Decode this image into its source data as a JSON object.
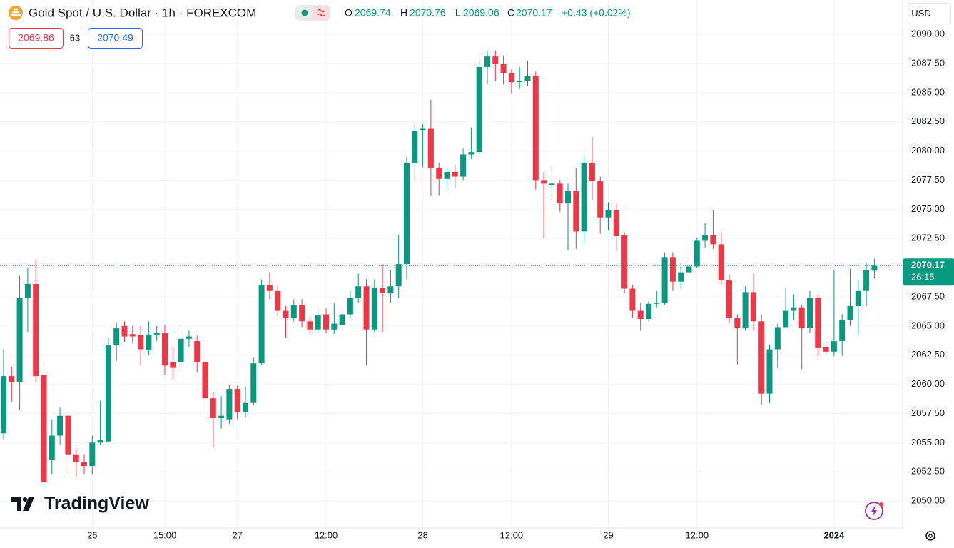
{
  "chart_data": {
    "type": "candlestick",
    "title": "Gold Spot / U.S. Dollar · 1h · FOREXCOM",
    "ohlc_letters": [
      "O",
      "H",
      "L",
      "C"
    ],
    "change": "+0.43 (+0.02%)",
    "bid": "2069.86",
    "spread": "63",
    "ask": "2070.49",
    "currency": "USD",
    "countdown": "26:15",
    "brand": "TradingView",
    "up_color": "#089981",
    "down_color": "#f23645",
    "grid": true,
    "open": [
      2055.8,
      2060.7,
      2060.2,
      2067.4,
      2068.6,
      2060.8,
      2053.5,
      2055.6,
      2057.3,
      2054.0,
      2053.3,
      2053.0,
      2055.0,
      2055.1,
      2063.4,
      2065.0,
      2064.3,
      2064.2,
      2062.9,
      2064.2,
      2064.4,
      2061.9,
      2061.9,
      2063.9,
      2063.7,
      2061.9,
      2058.8,
      2057.1,
      2057.0,
      2059.6,
      2057.6,
      2058.4,
      2061.8,
      2068.5,
      2068.0,
      2066.3,
      2065.7,
      2066.8,
      2065.4,
      2064.7,
      2066.0,
      2064.7,
      2065.1,
      2066.0,
      2067.4,
      2068.4,
      2064.7,
      2068.3,
      2067.8,
      2068.4,
      2070.3,
      2079.0,
      2081.8,
      2081.9,
      2078.5,
      2077.6,
      2078.2,
      2077.8,
      2079.7,
      2079.9,
      2087.2,
      2088.1,
      2087.5,
      2086.7,
      2085.9,
      2086.0,
      2086.4,
      2077.5,
      2077.1,
      2077.2,
      2075.5,
      2076.6,
      2073.1,
      2079.0,
      2077.4,
      2074.3,
      2074.9,
      2072.8,
      2068.2,
      2066.3,
      2065.6,
      2066.9,
      2067.0,
      2070.9,
      2068.8,
      2069.6,
      2070.1,
      2072.3,
      2072.8,
      2072.0,
      2068.9,
      2065.7,
      2064.8,
      2067.9,
      2065.4,
      2059.2,
      2063.0,
      2064.9,
      2066.3,
      2066.6,
      2064.8,
      2067.4,
      2063.2,
      2062.8,
      2063.7,
      2065.5,
      2066.7,
      2068.0,
      2069.74
    ],
    "high": [
      2063.0,
      2061.5,
      2069.3,
      2070.0,
      2070.7,
      2062.0,
      2057.0,
      2058.0,
      2057.5,
      2054.5,
      2054.0,
      2055.6,
      2058.6,
      2064.0,
      2065.3,
      2065.4,
      2065.0,
      2065.0,
      2065.4,
      2065.0,
      2065.1,
      2063.2,
      2064.6,
      2064.6,
      2064.2,
      2062.3,
      2059.3,
      2059.0,
      2059.9,
      2059.9,
      2059.8,
      2062.3,
      2069.0,
      2069.6,
      2068.5,
      2066.7,
      2067.3,
      2067.3,
      2065.8,
      2066.5,
      2066.5,
      2067.0,
      2066.5,
      2068.0,
      2069.5,
      2069.0,
      2069.0,
      2070.3,
      2069.8,
      2072.8,
      2079.5,
      2082.5,
      2082.3,
      2084.4,
      2079.0,
      2078.6,
      2078.8,
      2080.2,
      2082.0,
      2087.8,
      2088.6,
      2088.6,
      2088.2,
      2087.0,
      2087.2,
      2087.7,
      2086.8,
      2078.2,
      2078.7,
      2077.5,
      2077.2,
      2078.5,
      2079.5,
      2081.2,
      2077.8,
      2075.6,
      2075.5,
      2073.0,
      2068.5,
      2067.0,
      2067.1,
      2068.0,
      2071.3,
      2071.3,
      2070.4,
      2070.6,
      2072.6,
      2073.8,
      2074.9,
      2073.0,
      2069.4,
      2066.0,
      2068.4,
      2069.5,
      2066.0,
      2063.4,
      2065.2,
      2068.2,
      2067.7,
      2066.8,
      2068.0,
      2067.7,
      2063.5,
      2069.8,
      2066.0,
      2069.9,
      2068.9,
      2070.4,
      2070.76
    ],
    "low": [
      2055.3,
      2058.5,
      2057.8,
      2064.5,
      2060.2,
      2051.2,
      2052.3,
      2054.8,
      2052.2,
      2052.0,
      2052.3,
      2052.3,
      2054.8,
      2055.0,
      2062.0,
      2063.6,
      2063.5,
      2061.6,
      2062.5,
      2063.7,
      2060.8,
      2060.4,
      2061.5,
      2063.2,
      2061.0,
      2057.5,
      2054.6,
      2056.2,
      2056.6,
      2057.0,
      2057.2,
      2058.2,
      2061.6,
      2067.3,
      2065.8,
      2064.0,
      2065.4,
      2064.9,
      2064.3,
      2064.3,
      2064.4,
      2064.3,
      2064.6,
      2065.6,
      2067.0,
      2061.6,
      2064.5,
      2064.5,
      2067.0,
      2067.4,
      2069.0,
      2077.5,
      2078.6,
      2076.2,
      2076.2,
      2076.7,
      2076.8,
      2077.5,
      2079.3,
      2079.7,
      2085.7,
      2086.0,
      2085.7,
      2084.9,
      2085.3,
      2085.6,
      2076.7,
      2072.5,
      2075.9,
      2074.8,
      2071.5,
      2071.6,
      2072.0,
      2075.8,
      2072.9,
      2073.2,
      2071.4,
      2067.8,
      2065.7,
      2064.6,
      2065.4,
      2066.6,
      2066.8,
      2068.0,
      2068.2,
      2069.2,
      2070.0,
      2071.7,
      2071.6,
      2068.5,
      2065.3,
      2061.7,
      2064.6,
      2064.6,
      2058.2,
      2058.4,
      2061.4,
      2064.8,
      2065.5,
      2061.3,
      2064.4,
      2062.3,
      2062.5,
      2062.4,
      2062.5,
      2065.0,
      2064.2,
      2066.7,
      2069.06
    ],
    "close": [
      2060.7,
      2060.2,
      2067.4,
      2068.6,
      2060.7,
      2051.6,
      2055.6,
      2057.3,
      2054.0,
      2053.3,
      2053.0,
      2055.0,
      2055.2,
      2063.4,
      2064.8,
      2064.1,
      2064.1,
      2063.0,
      2064.2,
      2064.4,
      2061.6,
      2061.4,
      2063.9,
      2064.1,
      2061.9,
      2058.8,
      2057.1,
      2057.3,
      2059.6,
      2057.6,
      2058.4,
      2061.8,
      2068.5,
      2068.0,
      2066.3,
      2065.7,
      2066.8,
      2065.4,
      2064.7,
      2065.9,
      2064.7,
      2065.2,
      2066.0,
      2067.4,
      2068.4,
      2064.7,
      2068.3,
      2067.8,
      2068.4,
      2070.3,
      2079.0,
      2081.7,
      2081.9,
      2078.5,
      2077.6,
      2078.2,
      2077.8,
      2079.7,
      2079.9,
      2087.2,
      2088.1,
      2087.5,
      2086.7,
      2085.9,
      2086.0,
      2086.4,
      2077.5,
      2077.2,
      2077.2,
      2075.5,
      2076.6,
      2073.1,
      2079.0,
      2077.4,
      2074.3,
      2074.9,
      2072.7,
      2068.2,
      2066.3,
      2065.6,
      2066.9,
      2067.0,
      2070.9,
      2068.8,
      2069.6,
      2070.1,
      2072.3,
      2072.8,
      2072.0,
      2068.9,
      2065.7,
      2064.8,
      2067.9,
      2065.4,
      2059.2,
      2063.0,
      2064.9,
      2066.3,
      2066.6,
      2064.8,
      2067.4,
      2063.1,
      2062.8,
      2063.7,
      2065.5,
      2066.7,
      2068.0,
      2069.8,
      2070.17
    ],
    "ylim": [
      2047.68,
      2092.94
    ],
    "yticks": [
      {
        "value": 2050,
        "label": "2050.00"
      },
      {
        "value": 2052.5,
        "label": "2052.50"
      },
      {
        "value": 2055,
        "label": "2055.00"
      },
      {
        "value": 2057.5,
        "label": "2057.50"
      },
      {
        "value": 2060,
        "label": "2060.00"
      },
      {
        "value": 2062.5,
        "label": "2062.50"
      },
      {
        "value": 2065,
        "label": "2065.00"
      },
      {
        "value": 2067.5,
        "label": "2067.50"
      },
      {
        "value": 2070,
        "label": "2070.00"
      },
      {
        "value": 2072.5,
        "label": "2072.50"
      },
      {
        "value": 2075,
        "label": "2075.00"
      },
      {
        "value": 2077.5,
        "label": "2077.50"
      },
      {
        "value": 2080,
        "label": "2080.00"
      },
      {
        "value": 2082.5,
        "label": "2082.50"
      },
      {
        "value": 2085,
        "label": "2085.00"
      },
      {
        "value": 2087.5,
        "label": "2087.50"
      },
      {
        "value": 2090,
        "label": "2090.00"
      }
    ],
    "xticks": [
      {
        "value": 11,
        "label": "26"
      },
      {
        "value": 20,
        "label": "15:00"
      },
      {
        "value": 29,
        "label": "27"
      },
      {
        "value": 40,
        "label": "12:00"
      },
      {
        "value": 52,
        "label": "28"
      },
      {
        "value": 63,
        "label": "12:00"
      },
      {
        "value": 75,
        "label": "29"
      },
      {
        "value": 86,
        "label": "12:00"
      },
      {
        "value": 103,
        "label": "2024"
      }
    ]
  }
}
